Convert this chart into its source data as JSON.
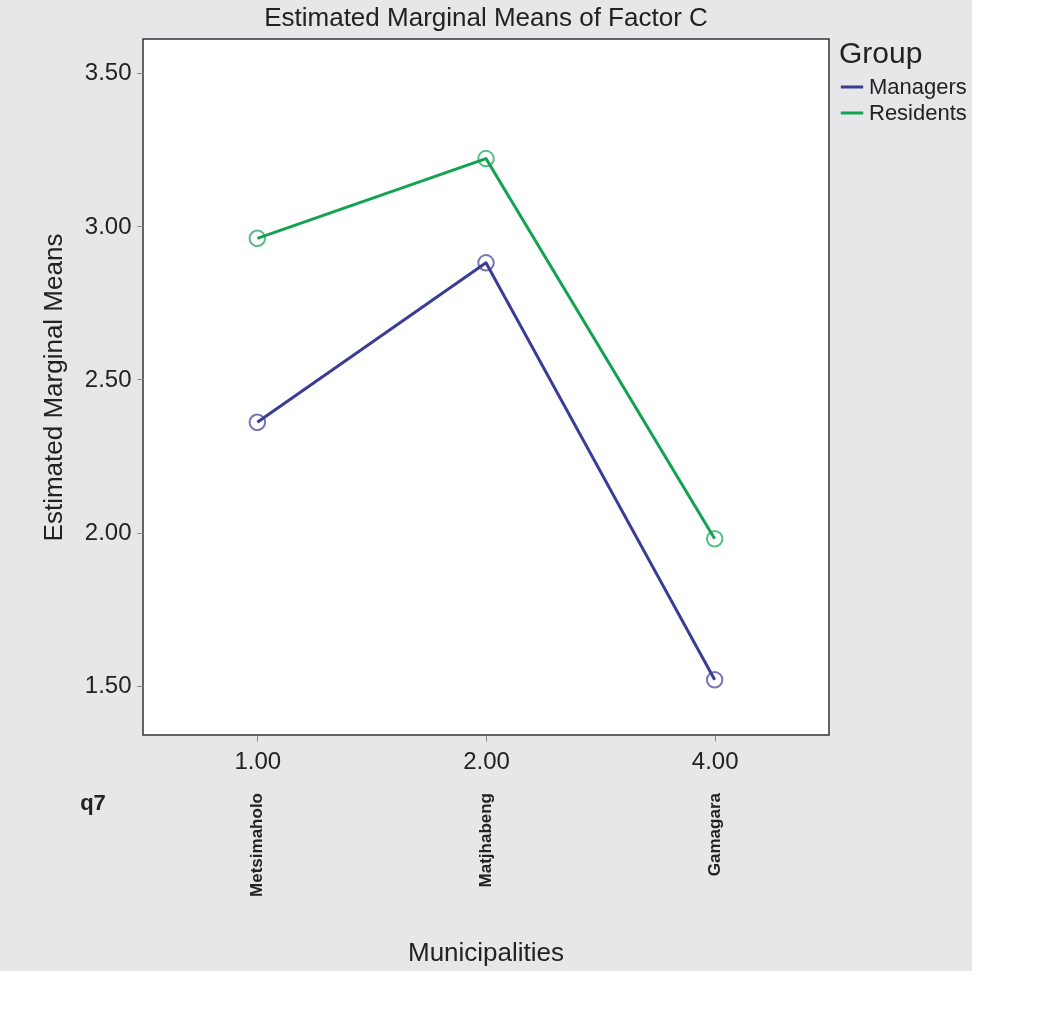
{
  "chart_data": {
    "type": "line",
    "title": "Estimated Marginal Means of Factor C",
    "ylabel": "Estimated Marginal Means",
    "legend_title": "Group",
    "categories": [
      "1.00",
      "2.00",
      "4.00"
    ],
    "series": [
      {
        "name": "Managers",
        "color": "#3a3d96",
        "values": [
          2.36,
          2.88,
          1.52
        ]
      },
      {
        "name": "Residents",
        "color": "#12a250",
        "values": [
          2.96,
          3.22,
          1.98
        ]
      }
    ],
    "ylim": [
      1.34,
      3.61
    ],
    "yticks": [
      {
        "value": 1.5,
        "label": "1.50"
      },
      {
        "value": 2.0,
        "label": "2.00"
      },
      {
        "value": 2.5,
        "label": "2.50"
      },
      {
        "value": 3.0,
        "label": "3.00"
      },
      {
        "value": 3.5,
        "label": "3.50"
      }
    ],
    "annotations": [
      "q7",
      "Metsimaholo",
      "Matjhabeng",
      "Gamagara",
      "Municipalities"
    ],
    "grid": false,
    "legend": "right",
    "marker": "circle",
    "line_style": "solid"
  }
}
